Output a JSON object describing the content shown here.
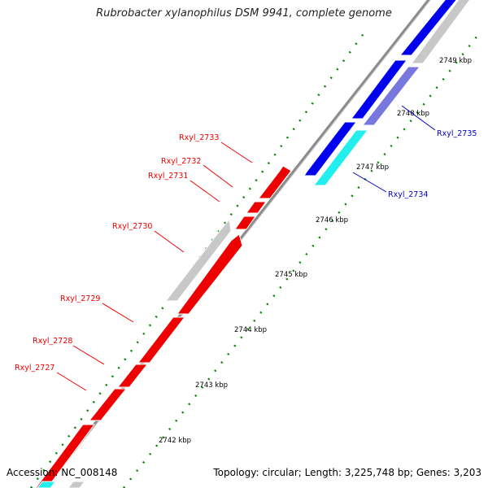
{
  "title": "Rubrobacter xylanophilus DSM 9941, complete genome",
  "footer": {
    "accession": "Accession: NC_008148",
    "topology": "Topology: circular; Length: 3,225,748 bp; Genes: 3,203"
  },
  "colors": {
    "forward_strand": "#0000ee",
    "reverse_strand": "#ee0000",
    "gray_gene": "#c8c8c8",
    "purple_gene": "#7777dd",
    "cyan_gene": "#22eeee",
    "backbone": "#8c8c8c",
    "dotted_ring": "#008800"
  },
  "ticks": [
    "2742 kbp",
    "2743 kbp",
    "2744 kbp",
    "2745 kbp",
    "2746 kbp",
    "2747 kbp",
    "2748 kbp",
    "2749 kbp"
  ],
  "genes": {
    "rxyl_2727": "Rxyl_2727",
    "rxyl_2728": "Rxyl_2728",
    "rxyl_2729": "Rxyl_2729",
    "rxyl_2730": "Rxyl_2730",
    "rxyl_2731": "Rxyl_2731",
    "rxyl_2732": "Rxyl_2732",
    "rxyl_2733": "Rxyl_2733",
    "rxyl_2734": "Rxyl_2734",
    "rxyl_2735": "Rxyl_2735"
  }
}
